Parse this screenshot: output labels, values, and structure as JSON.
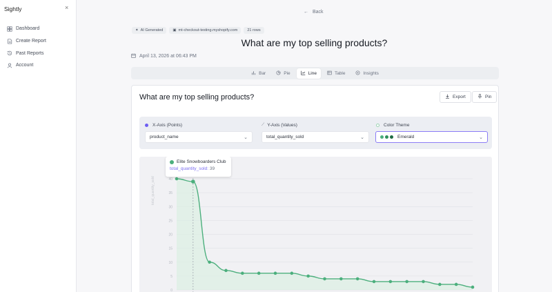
{
  "app": {
    "name": "Sightly",
    "close_glyph": "×"
  },
  "sidebar": {
    "items": [
      {
        "label": "Dashboard",
        "icon": "grid-icon"
      },
      {
        "label": "Create Report",
        "icon": "document-icon"
      },
      {
        "label": "Past Reports",
        "icon": "history-icon"
      },
      {
        "label": "Account",
        "icon": "user-icon"
      }
    ]
  },
  "header": {
    "back_label": "Back",
    "chips": [
      "AI Generated",
      "mt-checkout-testing.myshopify.com",
      "21 rows"
    ],
    "title": "What are my top selling products?",
    "date": "April 13, 2026 at 06:43 PM"
  },
  "tabs": [
    {
      "label": "Bar",
      "icon": "bar-chart-icon",
      "active": false
    },
    {
      "label": "Pie",
      "icon": "pie-chart-icon",
      "active": false
    },
    {
      "label": "Line",
      "icon": "line-chart-icon",
      "active": true
    },
    {
      "label": "Table",
      "icon": "table-icon",
      "active": false
    },
    {
      "label": "Insights",
      "icon": "insights-icon",
      "active": false
    }
  ],
  "card": {
    "title": "What are my top selling products?",
    "export_label": "Export",
    "pin_label": "Pin"
  },
  "controls": {
    "x_axis_label": "X-Axis (Points)",
    "x_axis_value": "product_name",
    "y_axis_label": "Y-Axis (Values)",
    "y_axis_value": "total_quantity_sold",
    "color_label": "Color Theme",
    "color_value": "Emerald",
    "color_swatches": [
      "#4caf7d",
      "#2f8f5b",
      "#1e6b42"
    ]
  },
  "tooltip": {
    "name": "Elite Snowboarders Club",
    "metric": "total_quantity_sold:",
    "value": "39"
  },
  "chart_data": {
    "type": "line",
    "series": [
      {
        "values": [
          40,
          39,
          10,
          7,
          6,
          6,
          6,
          6,
          5,
          4,
          4,
          4,
          3,
          3,
          3,
          3,
          2,
          2,
          1
        ]
      }
    ],
    "ylabel": "total_quantity_sold",
    "yticks": [
      0,
      5,
      10,
      15,
      20,
      25,
      30,
      35,
      40
    ],
    "ylim": [
      0,
      40
    ],
    "grid": true,
    "color": "#4caf7d",
    "fill": "#dcefe3",
    "highlight_index": 1
  }
}
